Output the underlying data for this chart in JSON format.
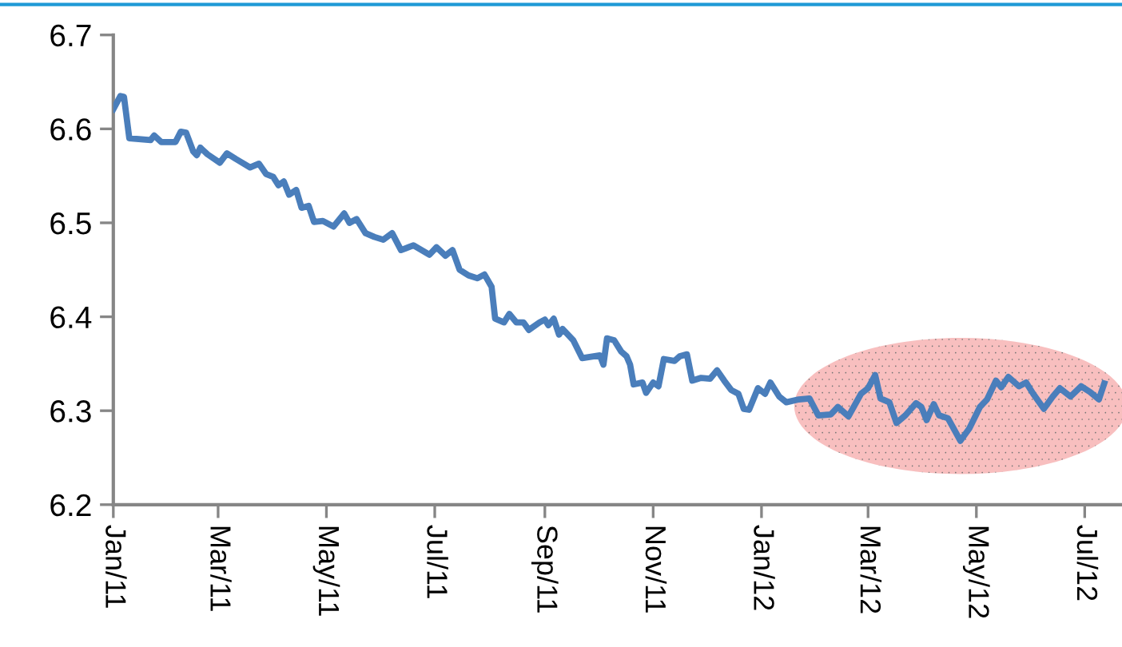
{
  "chart_data": {
    "type": "line",
    "x": [
      "2011-01-01",
      "2011-01-05",
      "2011-01-07",
      "2011-01-10",
      "2011-01-22",
      "2011-01-24",
      "2011-01-28",
      "2011-02-05",
      "2011-02-08",
      "2011-02-11",
      "2011-02-15",
      "2011-02-17",
      "2011-02-19",
      "2011-02-23",
      "2011-03-02",
      "2011-03-06",
      "2011-03-11",
      "2011-03-19",
      "2011-03-24",
      "2011-03-28",
      "2011-04-01",
      "2011-04-04",
      "2011-04-07",
      "2011-04-10",
      "2011-04-14",
      "2011-04-17",
      "2011-04-21",
      "2011-04-24",
      "2011-04-29",
      "2011-05-05",
      "2011-05-11",
      "2011-05-14",
      "2011-05-18",
      "2011-05-23",
      "2011-05-28",
      "2011-06-02",
      "2011-06-07",
      "2011-06-12",
      "2011-06-19",
      "2011-06-28",
      "2011-07-02",
      "2011-07-07",
      "2011-07-11",
      "2011-07-15",
      "2011-07-20",
      "2011-07-25",
      "2011-07-29",
      "2011-08-02",
      "2011-08-04",
      "2011-08-09",
      "2011-08-12",
      "2011-08-16",
      "2011-08-20",
      "2011-08-23",
      "2011-08-29",
      "2011-09-01",
      "2011-09-03",
      "2011-09-06",
      "2011-09-09",
      "2011-09-11",
      "2011-09-17",
      "2011-09-22",
      "2011-10-02",
      "2011-10-04",
      "2011-10-06",
      "2011-10-10",
      "2011-10-14",
      "2011-10-17",
      "2011-10-19",
      "2011-10-21",
      "2011-10-26",
      "2011-10-28",
      "2011-11-01",
      "2011-11-04",
      "2011-11-07",
      "2011-11-13",
      "2011-11-16",
      "2011-11-20",
      "2011-11-23",
      "2011-11-28",
      "2011-12-03",
      "2011-12-07",
      "2011-12-11",
      "2011-12-15",
      "2011-12-19",
      "2011-12-22",
      "2011-12-25",
      "2011-12-30",
      "2012-01-03",
      "2012-01-06",
      "2012-01-11",
      "2012-01-15",
      "2012-01-22",
      "2012-01-28",
      "2012-02-02",
      "2012-02-09",
      "2012-02-13",
      "2012-02-19",
      "2012-02-26",
      "2012-03-01",
      "2012-03-05",
      "2012-03-08",
      "2012-03-13",
      "2012-03-17",
      "2012-03-22",
      "2012-03-28",
      "2012-03-31",
      "2012-04-03",
      "2012-04-07",
      "2012-04-10",
      "2012-04-15",
      "2012-04-22",
      "2012-04-27",
      "2012-05-03",
      "2012-05-07",
      "2012-05-12",
      "2012-05-15",
      "2012-05-19",
      "2012-05-25",
      "2012-05-29",
      "2012-06-02",
      "2012-06-08",
      "2012-06-13",
      "2012-06-17",
      "2012-06-23",
      "2012-06-29",
      "2012-07-04",
      "2012-07-09",
      "2012-07-12"
    ],
    "series": [
      {
        "color": "#4a7ebb",
        "values": [
          6.621,
          6.635,
          6.634,
          6.59,
          6.588,
          6.593,
          6.586,
          6.586,
          6.597,
          6.596,
          6.576,
          6.572,
          6.58,
          6.573,
          6.564,
          6.574,
          6.568,
          6.559,
          6.563,
          6.552,
          6.549,
          6.54,
          6.544,
          6.53,
          6.535,
          6.516,
          6.518,
          6.501,
          6.502,
          6.496,
          6.51,
          6.5,
          6.504,
          6.489,
          6.485,
          6.482,
          6.489,
          6.471,
          6.476,
          6.466,
          6.474,
          6.465,
          6.471,
          6.45,
          6.444,
          6.441,
          6.445,
          6.432,
          6.398,
          6.394,
          6.403,
          6.394,
          6.394,
          6.386,
          6.394,
          6.397,
          6.391,
          6.398,
          6.381,
          6.387,
          6.375,
          6.356,
          6.359,
          6.349,
          6.377,
          6.375,
          6.363,
          6.358,
          6.349,
          6.328,
          6.33,
          6.319,
          6.33,
          6.326,
          6.355,
          6.353,
          6.358,
          6.36,
          6.332,
          6.335,
          6.334,
          6.343,
          6.332,
          6.322,
          6.318,
          6.302,
          6.301,
          6.324,
          6.318,
          6.33,
          6.315,
          6.309,
          6.312,
          6.313,
          6.295,
          6.296,
          6.304,
          6.294,
          6.318,
          6.324,
          6.338,
          6.313,
          6.309,
          6.287,
          6.295,
          6.308,
          6.304,
          6.29,
          6.307,
          6.295,
          6.292,
          6.268,
          6.281,
          6.304,
          6.312,
          6.332,
          6.325,
          6.336,
          6.326,
          6.33,
          6.318,
          6.302,
          6.315,
          6.324,
          6.315,
          6.326,
          6.32,
          6.312,
          6.329
        ]
      }
    ],
    "xlim": [
      "2011-01-01",
      "2012-07-22"
    ],
    "xticks": [
      {
        "value": "2011-01-01",
        "label": "Jan/11"
      },
      {
        "value": "2011-03-01",
        "label": "Mar/11"
      },
      {
        "value": "2011-05-01",
        "label": "May/11"
      },
      {
        "value": "2011-07-01",
        "label": "Jul/11"
      },
      {
        "value": "2011-09-01",
        "label": "Sep/11"
      },
      {
        "value": "2011-11-01",
        "label": "Nov/11"
      },
      {
        "value": "2012-01-01",
        "label": "Jan/12"
      },
      {
        "value": "2012-03-01",
        "label": "Mar/12"
      },
      {
        "value": "2012-05-01",
        "label": "May/12"
      },
      {
        "value": "2012-07-01",
        "label": "Jul/12"
      }
    ],
    "ylim": [
      6.2,
      6.7
    ],
    "yticks": [
      6.2,
      6.3,
      6.4,
      6.5,
      6.6,
      6.7
    ],
    "grid": false,
    "legend": false,
    "marker": "none",
    "line_style": "solid"
  }
}
